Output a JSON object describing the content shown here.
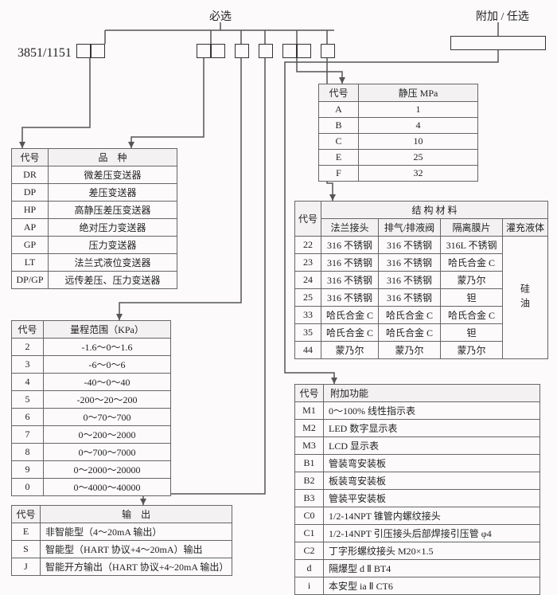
{
  "labels": {
    "required": "必选",
    "optional": "附加 / 任选",
    "model": "3851/1151"
  },
  "tables": {
    "type": {
      "headers": [
        "代号",
        "品　种"
      ],
      "rows": [
        [
          "DR",
          "微差压变送器"
        ],
        [
          "DP",
          "差压变送器"
        ],
        [
          "HP",
          "高静压差压变送器"
        ],
        [
          "AP",
          "绝对压力变送器"
        ],
        [
          "GP",
          "压力变送器"
        ],
        [
          "LT",
          "法兰式液位变送器"
        ],
        [
          "DP/GP",
          "远传差压、压力变送器"
        ]
      ]
    },
    "range": {
      "headers": [
        "代号",
        "量程范围（KPa）"
      ],
      "rows": [
        [
          "2",
          "-1.6～0～1.6"
        ],
        [
          "3",
          "-6～0～6"
        ],
        [
          "4",
          "-40～0～40"
        ],
        [
          "5",
          "-200～20～200"
        ],
        [
          "6",
          "0～70～700"
        ],
        [
          "7",
          "0～200～2000"
        ],
        [
          "8",
          "0～700～7000"
        ],
        [
          "9",
          "0～2000～20000"
        ],
        [
          "0",
          "0～4000～40000"
        ]
      ]
    },
    "output": {
      "headers": [
        "代号",
        "输　出"
      ],
      "rows": [
        [
          "E",
          "非智能型（4～20mA 输出）"
        ],
        [
          "S",
          "智能型（HART 协议+4～20mA）输出"
        ],
        [
          "J",
          "智能开方输出（HART 协议+4~20mA 输出）"
        ]
      ]
    },
    "static_pressure": {
      "headers": [
        "代号",
        "静压 MPa"
      ],
      "rows": [
        [
          "A",
          "1"
        ],
        [
          "B",
          "4"
        ],
        [
          "C",
          "10"
        ],
        [
          "E",
          "25"
        ],
        [
          "F",
          "32"
        ]
      ]
    },
    "structure": {
      "group_header": "结 构 材 料",
      "code_header": "代号",
      "sub_headers": [
        "法兰接头",
        "排气/排液阀",
        "隔离膜片",
        "灌充液体"
      ],
      "liquid": "硅油",
      "rows": [
        [
          "22",
          "316 不锈钢",
          "316 不锈钢",
          "316L 不锈钢"
        ],
        [
          "23",
          "316 不锈钢",
          "316 不锈钢",
          "哈氏合金 C"
        ],
        [
          "24",
          "316 不锈钢",
          "316 不锈钢",
          "蒙乃尔"
        ],
        [
          "25",
          "316 不锈钢",
          "316 不锈钢",
          "钽"
        ],
        [
          "33",
          "哈氏合金 C",
          "哈氏合金 C",
          "哈氏合金 C"
        ],
        [
          "35",
          "哈氏合金 C",
          "哈氏合金 C",
          "钽"
        ],
        [
          "44",
          "蒙乃尔",
          "蒙乃尔",
          "蒙乃尔"
        ]
      ]
    },
    "addon": {
      "headers": [
        "代号",
        "附加功能"
      ],
      "rows": [
        [
          "M1",
          "0～100% 线性指示表"
        ],
        [
          "M2",
          "LED 数字显示表"
        ],
        [
          "M3",
          "LCD 显示表"
        ],
        [
          "B1",
          "管装弯安装板"
        ],
        [
          "B2",
          "板装弯安装板"
        ],
        [
          "B3",
          "管装平安装板"
        ],
        [
          "C0",
          "1/2-14NPT 锥管内螺纹接头"
        ],
        [
          "C1",
          "1/2-14NPT 引压接头后部焊接引压管 φ4"
        ],
        [
          "C2",
          "丁字形螺纹接头 M20×1.5"
        ],
        [
          "d",
          "隔爆型 d Ⅱ BT4"
        ],
        [
          "i",
          "本安型 ia Ⅱ CT6"
        ]
      ]
    }
  },
  "style": {
    "page_bg": "#fcfafa",
    "border_color": "#666",
    "wire_color": "#555",
    "font_size_body": 12,
    "font_size_header": 14,
    "font_size_model": 16
  }
}
